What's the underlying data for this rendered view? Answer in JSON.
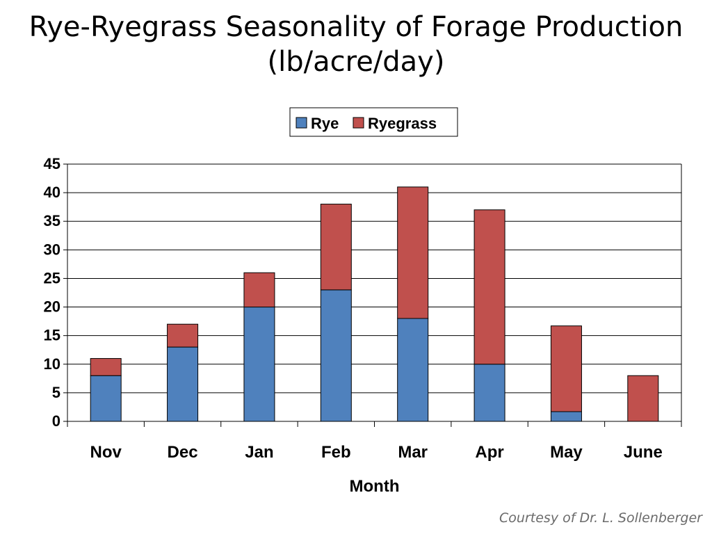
{
  "slide": {
    "title_line1": "Rye-Ryegrass Seasonality of Forage Production",
    "title_line2": "(lb/acre/day)",
    "credit": "Courtesy of Dr. L. Sollenberger"
  },
  "chart_data": {
    "type": "bar",
    "stacked": true,
    "categories": [
      "Nov",
      "Dec",
      "Jan",
      "Feb",
      "Mar",
      "Apr",
      "May",
      "June"
    ],
    "series": [
      {
        "name": "Rye",
        "values": [
          8,
          13,
          20,
          23,
          18,
          10,
          1.7,
          0
        ],
        "color": "#4f81bd"
      },
      {
        "name": "Ryegrass",
        "values": [
          3,
          4,
          6,
          15,
          23,
          27,
          15,
          8
        ],
        "color": "#c0504d"
      }
    ],
    "title": "",
    "xlabel": "Month",
    "ylabel": "",
    "ylim": [
      0,
      45
    ],
    "yticks": [
      0,
      5,
      10,
      15,
      20,
      25,
      30,
      35,
      40,
      45
    ],
    "grid": true,
    "legend": "top-center"
  }
}
